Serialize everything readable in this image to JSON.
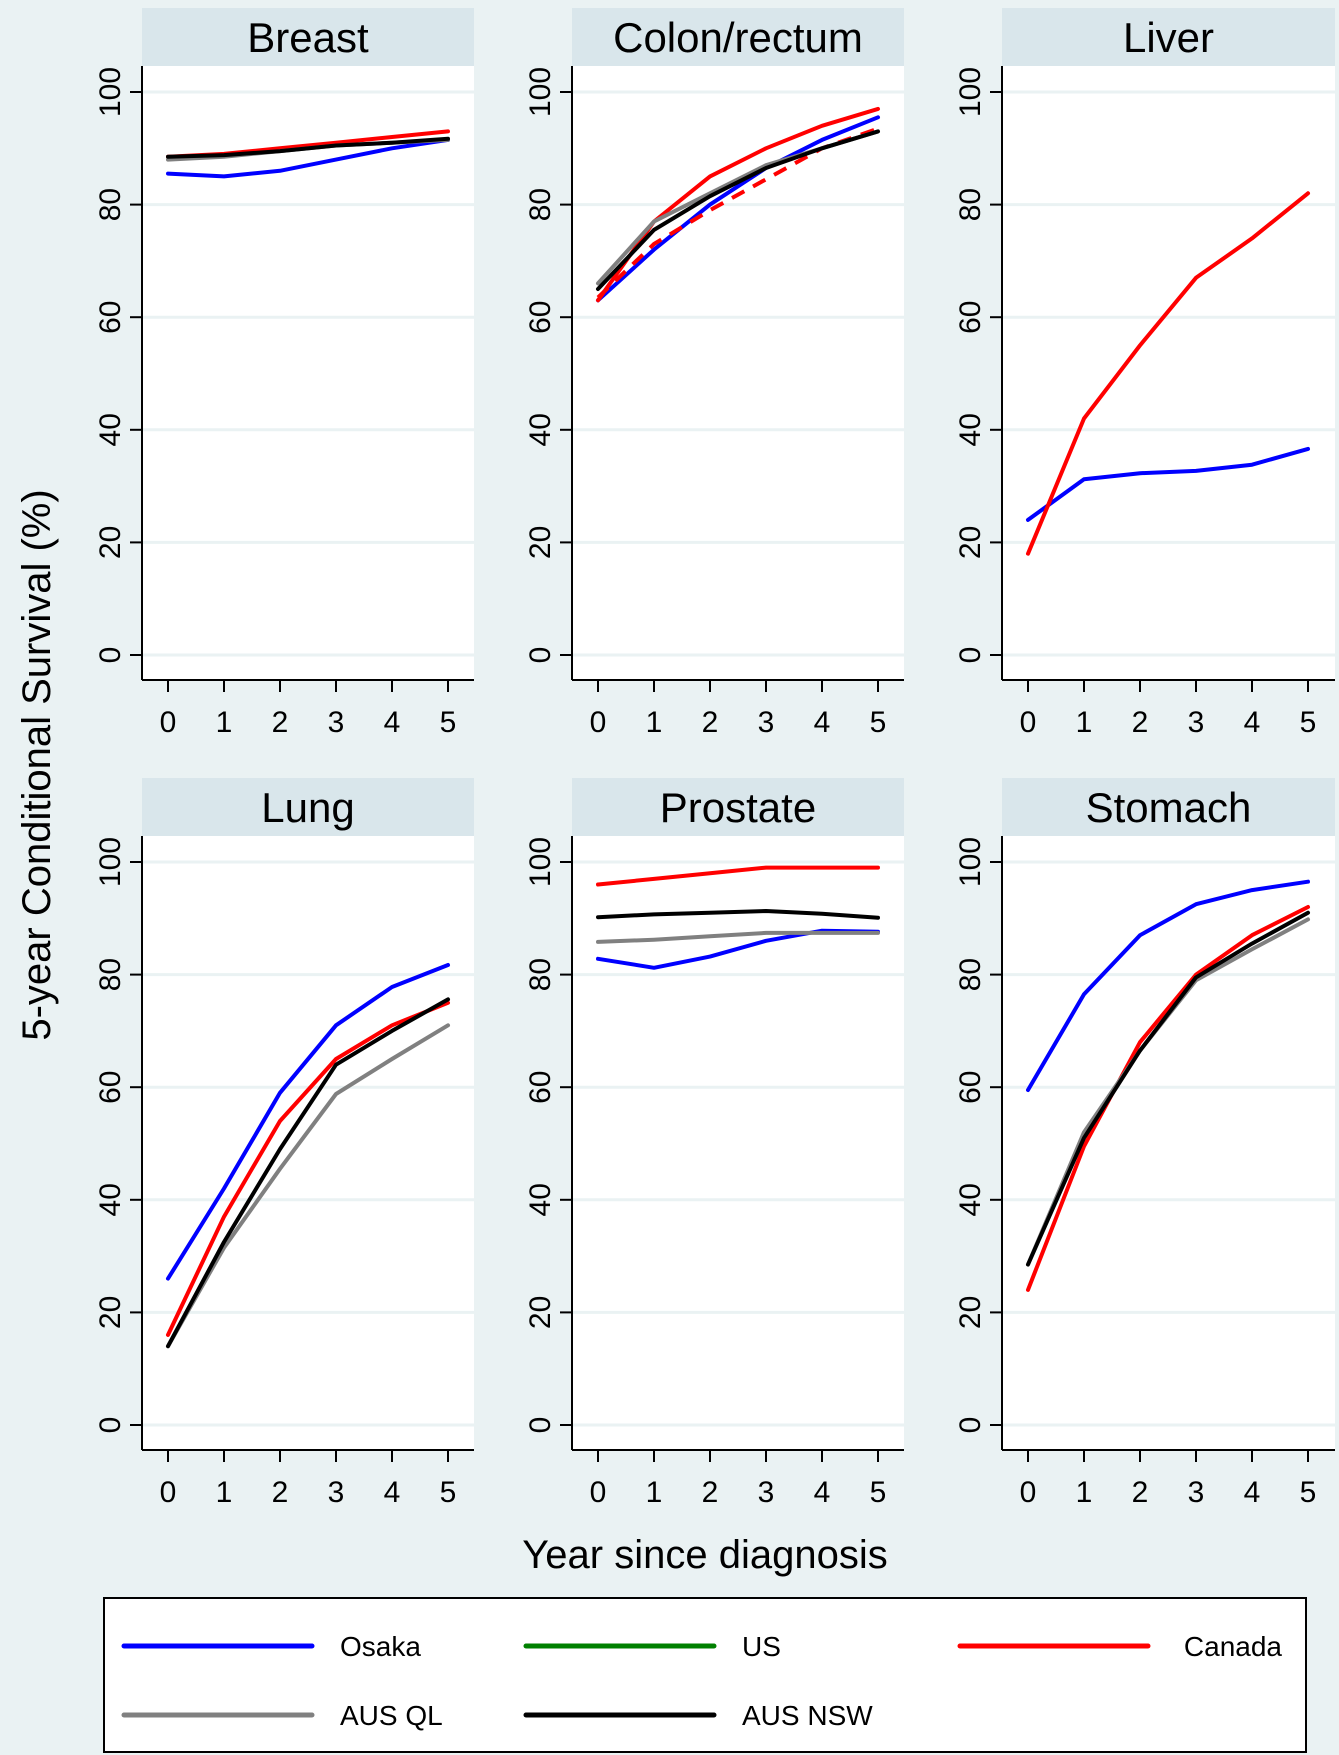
{
  "figure": {
    "ylabel": "5-year Conditional Survival (%)",
    "xlabel": "Year since diagnosis"
  },
  "legend": [
    {
      "name": "Osaka",
      "color": "#0000ff"
    },
    {
      "name": "US",
      "color": "#008000"
    },
    {
      "name": "Canada",
      "color": "#ff0000"
    },
    {
      "name": "AUS QL",
      "color": "#808080"
    },
    {
      "name": "AUS NSW",
      "color": "#000000"
    }
  ],
  "chart_data": [
    {
      "type": "line",
      "title": "Breast",
      "x": [
        0,
        1,
        2,
        3,
        4,
        5
      ],
      "xticks": [
        "0",
        "1",
        "2",
        "3",
        "4",
        "5"
      ],
      "yticks": [
        "0",
        "20",
        "40",
        "60",
        "80",
        "100"
      ],
      "ylim": [
        0,
        100
      ],
      "grid": true,
      "series": [
        {
          "name": "Osaka",
          "color": "#0000ff",
          "values": [
            85.5,
            85,
            86,
            88,
            90,
            91.5
          ]
        },
        {
          "name": "Canada",
          "color": "#ff0000",
          "values": [
            88.5,
            89,
            90,
            91,
            92,
            93
          ]
        },
        {
          "name": "AUS QL",
          "color": "#808080",
          "values": [
            88,
            88.5,
            89.5,
            90.5,
            91,
            91.5
          ]
        },
        {
          "name": "AUS NSW",
          "color": "#000000",
          "values": [
            88.5,
            88.8,
            89.5,
            90.5,
            91,
            91.7
          ]
        }
      ]
    },
    {
      "type": "line",
      "title": "Colon/rectum",
      "x": [
        0,
        1,
        2,
        3,
        4,
        5
      ],
      "xticks": [
        "0",
        "1",
        "2",
        "3",
        "4",
        "5"
      ],
      "yticks": [
        "0",
        "20",
        "40",
        "60",
        "80",
        "100"
      ],
      "ylim": [
        0,
        100
      ],
      "grid": true,
      "series": [
        {
          "name": "Osaka",
          "color": "#0000ff",
          "values": [
            63,
            72,
            80,
            86.5,
            91.5,
            95.5
          ]
        },
        {
          "name": "Canada",
          "color": "#ff0000",
          "values": [
            63,
            77,
            85,
            90,
            94,
            97
          ]
        },
        {
          "name": "Canada",
          "color": "#ff0000",
          "dashed": true,
          "values": [
            63.5,
            73,
            79,
            84.5,
            90,
            93.5
          ]
        },
        {
          "name": "AUS QL",
          "color": "#808080",
          "values": [
            66,
            77,
            82,
            87,
            90,
            93
          ]
        },
        {
          "name": "AUS NSW",
          "color": "#000000",
          "values": [
            65,
            75.5,
            81.5,
            86.5,
            90,
            93
          ]
        }
      ]
    },
    {
      "type": "line",
      "title": "Liver",
      "x": [
        0,
        1,
        2,
        3,
        4,
        5
      ],
      "xticks": [
        "0",
        "1",
        "2",
        "3",
        "4",
        "5"
      ],
      "yticks": [
        "0",
        "20",
        "40",
        "60",
        "80",
        "100"
      ],
      "ylim": [
        0,
        100
      ],
      "grid": true,
      "series": [
        {
          "name": "Osaka",
          "color": "#0000ff",
          "values": [
            24,
            31.2,
            32.3,
            32.7,
            33.8,
            36.6
          ]
        },
        {
          "name": "Canada",
          "color": "#ff0000",
          "values": [
            18,
            42,
            55,
            67,
            74,
            82
          ]
        }
      ]
    },
    {
      "type": "line",
      "title": "Lung",
      "x": [
        0,
        1,
        2,
        3,
        4,
        5
      ],
      "xticks": [
        "0",
        "1",
        "2",
        "3",
        "4",
        "5"
      ],
      "yticks": [
        "0",
        "20",
        "40",
        "60",
        "80",
        "100"
      ],
      "ylim": [
        0,
        100
      ],
      "grid": true,
      "series": [
        {
          "name": "Osaka",
          "color": "#0000ff",
          "values": [
            26,
            42,
            59,
            71,
            77.8,
            81.7
          ]
        },
        {
          "name": "Canada",
          "color": "#ff0000",
          "values": [
            16,
            37,
            54,
            65,
            71,
            75
          ]
        },
        {
          "name": "AUS QL",
          "color": "#808080",
          "values": [
            14,
            31.5,
            45.5,
            58.8,
            65,
            71
          ]
        },
        {
          "name": "AUS NSW",
          "color": "#000000",
          "values": [
            14,
            32.5,
            49,
            64,
            70,
            75.6
          ]
        }
      ]
    },
    {
      "type": "line",
      "title": "Prostate",
      "x": [
        0,
        1,
        2,
        3,
        4,
        5
      ],
      "xticks": [
        "0",
        "1",
        "2",
        "3",
        "4",
        "5"
      ],
      "yticks": [
        "0",
        "20",
        "40",
        "60",
        "80",
        "100"
      ],
      "ylim": [
        0,
        100
      ],
      "grid": true,
      "series": [
        {
          "name": "Osaka",
          "color": "#0000ff",
          "values": [
            82.8,
            81.2,
            83.2,
            86,
            87.8,
            87.6
          ]
        },
        {
          "name": "Canada",
          "color": "#ff0000",
          "values": [
            96,
            97,
            98,
            99,
            99,
            99
          ]
        },
        {
          "name": "AUS QL",
          "color": "#808080",
          "values": [
            85.8,
            86.2,
            86.8,
            87.4,
            87.4,
            87.4
          ]
        },
        {
          "name": "AUS NSW",
          "color": "#000000",
          "values": [
            90.2,
            90.7,
            91,
            91.3,
            90.8,
            90.1
          ]
        }
      ]
    },
    {
      "type": "line",
      "title": "Stomach",
      "x": [
        0,
        1,
        2,
        3,
        4,
        5
      ],
      "xticks": [
        "0",
        "1",
        "2",
        "3",
        "4",
        "5"
      ],
      "yticks": [
        "0",
        "20",
        "40",
        "60",
        "80",
        "100"
      ],
      "ylim": [
        0,
        100
      ],
      "grid": true,
      "series": [
        {
          "name": "Osaka",
          "color": "#0000ff",
          "values": [
            59.5,
            76.5,
            87,
            92.5,
            95,
            96.5
          ]
        },
        {
          "name": "Canada",
          "color": "#ff0000",
          "values": [
            24,
            49.5,
            68,
            80,
            87,
            92
          ]
        },
        {
          "name": "AUS QL",
          "color": "#808080",
          "values": [
            28.5,
            52,
            66.5,
            79,
            84.5,
            89.8
          ]
        },
        {
          "name": "AUS NSW",
          "color": "#000000",
          "values": [
            28.5,
            51,
            66.5,
            79.5,
            85.5,
            91
          ]
        }
      ]
    }
  ]
}
